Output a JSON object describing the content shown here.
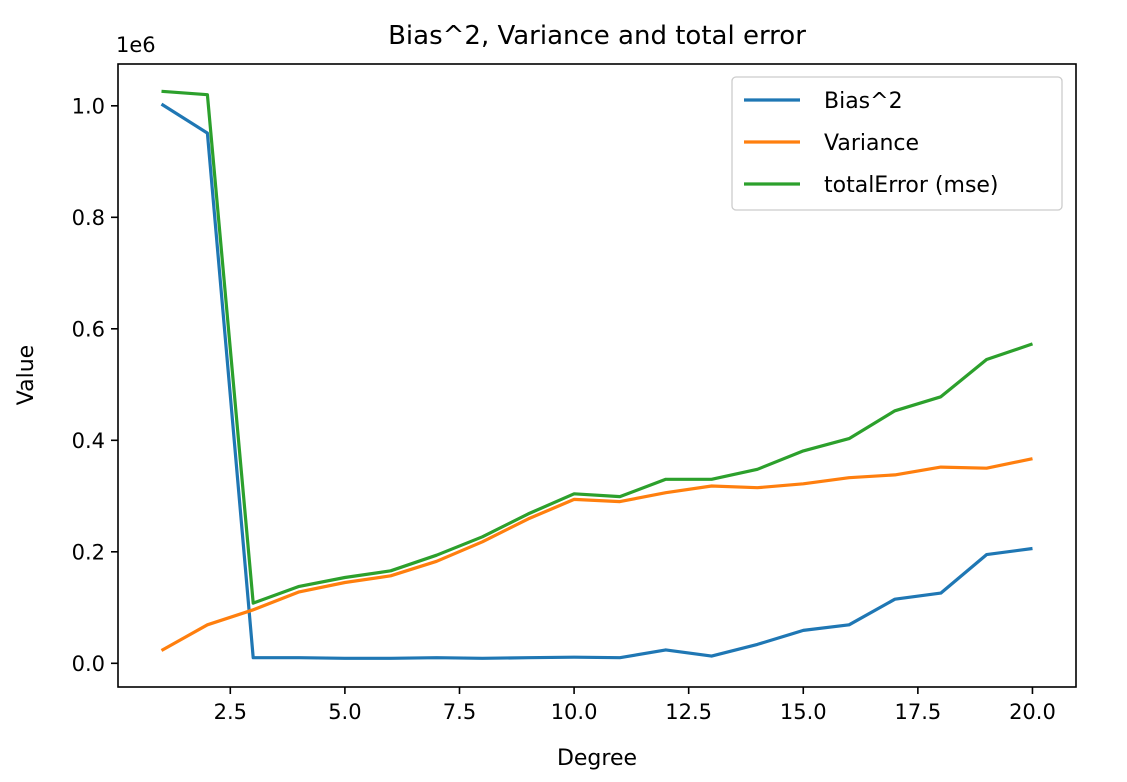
{
  "chart_data": {
    "type": "line",
    "title": "Bias^2, Variance and total error",
    "xlabel": "Degree",
    "ylabel": "Value",
    "y_offset_label": "1e6",
    "xlim": [
      0.05,
      20.95
    ],
    "ylim": [
      -0.0425,
      1.075
    ],
    "x_ticks": [
      2.5,
      5.0,
      7.5,
      10.0,
      12.5,
      15.0,
      17.5,
      20.0
    ],
    "x_tick_labels": [
      "2.5",
      "5.0",
      "7.5",
      "10.0",
      "12.5",
      "15.0",
      "17.5",
      "20.0"
    ],
    "y_ticks": [
      0.0,
      0.2,
      0.4,
      0.6,
      0.8,
      1.0
    ],
    "y_tick_labels": [
      "0.0",
      "0.2",
      "0.4",
      "0.6",
      "0.8",
      "1.0"
    ],
    "grid": false,
    "legend_position": "top-right",
    "x": [
      1,
      2,
      3,
      4,
      5,
      6,
      7,
      8,
      9,
      10,
      11,
      12,
      13,
      14,
      15,
      16,
      17,
      18,
      19,
      20
    ],
    "series": [
      {
        "name": "Bias^2",
        "color": "#1f77b4",
        "values": [
          1.003,
          0.951,
          0.01,
          0.01,
          0.009,
          0.009,
          0.01,
          0.009,
          0.01,
          0.011,
          0.01,
          0.024,
          0.013,
          0.034,
          0.059,
          0.069,
          0.115,
          0.126,
          0.195,
          0.206
        ]
      },
      {
        "name": "Variance",
        "color": "#ff7f0e",
        "values": [
          0.023,
          0.069,
          0.096,
          0.128,
          0.145,
          0.157,
          0.183,
          0.218,
          0.259,
          0.294,
          0.29,
          0.306,
          0.318,
          0.315,
          0.322,
          0.333,
          0.338,
          0.352,
          0.35,
          0.367
        ]
      },
      {
        "name": "totalError (mse)",
        "color": "#2ca02c",
        "values": [
          1.026,
          1.02,
          0.108,
          0.138,
          0.154,
          0.166,
          0.194,
          0.227,
          0.268,
          0.304,
          0.299,
          0.33,
          0.33,
          0.348,
          0.381,
          0.403,
          0.453,
          0.478,
          0.545,
          0.573
        ]
      }
    ]
  }
}
